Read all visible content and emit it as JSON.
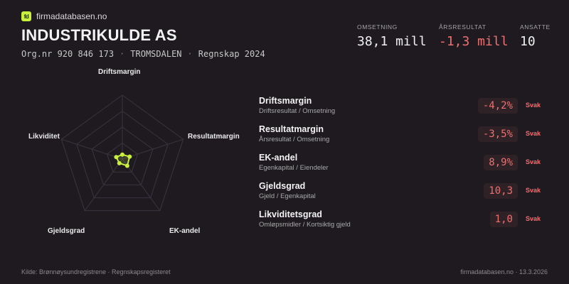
{
  "brand": {
    "logo_text": "fd",
    "name": "firmadatabasen.no"
  },
  "company": {
    "name": "INDUSTRIKULDE AS",
    "orgnr": "Org.nr 920 846 173",
    "location": "TROMSDALEN",
    "year": "Regnskap 2024",
    "separator": "·"
  },
  "kpis": [
    {
      "label": "OMSETNING",
      "value": "38,1 mill"
    },
    {
      "label": "ÅRSRESULTAT",
      "value": "-1,3 mill"
    },
    {
      "label": "ANSATTE",
      "value": "10"
    }
  ],
  "radar": {
    "axes": [
      "Driftsmargin",
      "Resultatmargin",
      "EK-andel",
      "Gjeldsgrad",
      "Likviditet"
    ],
    "scores": [
      0.07,
      0.12,
      0.13,
      0.08,
      0.1
    ],
    "rings": 4,
    "colors": {
      "grid": "#3a3440",
      "series": "#c8f03c"
    }
  },
  "metrics": [
    {
      "name": "Driftsmargin",
      "desc": "Driftsresultat / Omsetning",
      "value": "-4,2%",
      "status": "Svak"
    },
    {
      "name": "Resultatmargin",
      "desc": "Årsresultat / Omsetning",
      "value": "-3,5%",
      "status": "Svak"
    },
    {
      "name": "EK-andel",
      "desc": "Egenkapital / Eiendeler",
      "value": "8,9%",
      "status": "Svak"
    },
    {
      "name": "Gjeldsgrad",
      "desc": "Gjeld / Egenkapital",
      "value": "10,3",
      "status": "Svak"
    },
    {
      "name": "Likviditetsgrad",
      "desc": "Omløpsmidler / Kortsiktig gjeld",
      "value": "1,0",
      "status": "Svak"
    }
  ],
  "footer": {
    "source": "Kilde: Brønnøysundregistrene · Regnskapsregisteret",
    "site": "firmadatabasen.no · 13.3.2026"
  },
  "colors": {
    "background": "#1e1a20",
    "accent": "#c8f03c",
    "negative": "#ee7070"
  }
}
